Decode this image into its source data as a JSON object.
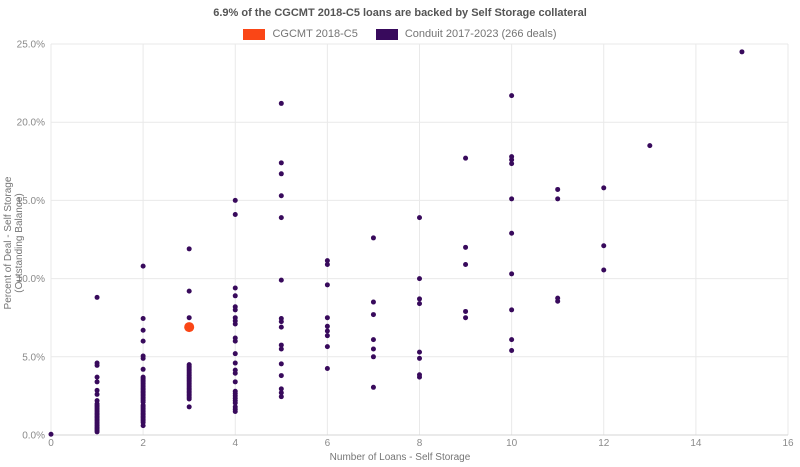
{
  "title": "6.9% of the CGCMT 2018-C5 loans are backed by Self Storage collateral",
  "legend": {
    "items": [
      {
        "label": "CGCMT 2018-C5",
        "color": "#fa4616"
      },
      {
        "label": "Conduit 2017-2023 (266 deals)",
        "color": "#380a5c"
      }
    ]
  },
  "chart_data": {
    "type": "scatter",
    "title": "6.9% of the CGCMT 2018-C5 loans are backed by Self Storage collateral",
    "xlabel": "Number of Loans - Self Storage",
    "ylabel": "Percent of Deal - Self Storage (Outstanding Balance)",
    "xlim": [
      0,
      16
    ],
    "ylim": [
      0,
      25
    ],
    "grid": true,
    "legend_position": "top",
    "x_ticks": [
      {
        "value": 0,
        "label": "0"
      },
      {
        "value": 2,
        "label": "2"
      },
      {
        "value": 4,
        "label": "4"
      },
      {
        "value": 6,
        "label": "6"
      },
      {
        "value": 8,
        "label": "8"
      },
      {
        "value": 10,
        "label": "10"
      },
      {
        "value": 12,
        "label": "12"
      },
      {
        "value": 14,
        "label": "14"
      },
      {
        "value": 16,
        "label": "16"
      }
    ],
    "y_ticks": [
      {
        "value": 0,
        "label": "0.0%"
      },
      {
        "value": 5,
        "label": "5.0%"
      },
      {
        "value": 10,
        "label": "10.0%"
      },
      {
        "value": 15,
        "label": "15.0%"
      },
      {
        "value": 20,
        "label": "20.0%"
      },
      {
        "value": 25,
        "label": "25.0%"
      }
    ],
    "series": [
      {
        "name": "CGCMT 2018-C5",
        "color": "#fa4616",
        "marker_radius": 5,
        "points": [
          [
            3,
            6.9
          ]
        ]
      },
      {
        "name": "Conduit 2017-2023 (266 deals)",
        "color": "#380a5c",
        "marker_radius": 2.5,
        "points": [
          [
            0,
            0.05
          ],
          [
            1,
            8.8
          ],
          [
            1,
            4.6
          ],
          [
            1,
            4.45
          ],
          [
            1,
            3.7
          ],
          [
            1,
            3.4
          ],
          [
            1,
            2.85
          ],
          [
            1,
            2.6
          ],
          [
            1,
            2.2
          ],
          [
            1,
            2.0
          ],
          [
            1,
            1.9
          ],
          [
            1,
            1.8
          ],
          [
            1,
            1.7
          ],
          [
            1,
            1.6
          ],
          [
            1,
            1.5
          ],
          [
            1,
            1.4
          ],
          [
            1,
            1.3
          ],
          [
            1,
            1.2
          ],
          [
            1,
            1.1
          ],
          [
            1,
            1.0
          ],
          [
            1,
            0.9
          ],
          [
            1,
            0.8
          ],
          [
            1,
            0.7
          ],
          [
            1,
            0.6
          ],
          [
            1,
            0.5
          ],
          [
            1,
            0.4
          ],
          [
            1,
            0.3
          ],
          [
            1,
            0.2
          ],
          [
            2,
            10.8
          ],
          [
            2,
            7.45
          ],
          [
            2,
            6.7
          ],
          [
            2,
            6.0
          ],
          [
            2,
            5.05
          ],
          [
            2,
            4.9
          ],
          [
            2,
            4.2
          ],
          [
            2,
            3.7
          ],
          [
            2,
            3.6
          ],
          [
            2,
            3.5
          ],
          [
            2,
            3.4
          ],
          [
            2,
            3.3
          ],
          [
            2,
            3.2
          ],
          [
            2,
            3.1
          ],
          [
            2,
            3.0
          ],
          [
            2,
            2.9
          ],
          [
            2,
            2.8
          ],
          [
            2,
            2.7
          ],
          [
            2,
            2.6
          ],
          [
            2,
            2.5
          ],
          [
            2,
            2.4
          ],
          [
            2,
            2.3
          ],
          [
            2,
            2.2
          ],
          [
            2,
            2.1
          ],
          [
            2,
            1.9
          ],
          [
            2,
            1.8
          ],
          [
            2,
            1.7
          ],
          [
            2,
            1.6
          ],
          [
            2,
            1.5
          ],
          [
            2,
            1.4
          ],
          [
            2,
            1.3
          ],
          [
            2,
            1.2
          ],
          [
            2,
            1.1
          ],
          [
            2,
            1.0
          ],
          [
            2,
            0.9
          ],
          [
            2,
            0.8
          ],
          [
            2,
            0.6
          ],
          [
            3,
            11.9
          ],
          [
            3,
            9.2
          ],
          [
            3,
            7.5
          ],
          [
            3,
            4.5
          ],
          [
            3,
            4.4
          ],
          [
            3,
            4.3
          ],
          [
            3,
            4.2
          ],
          [
            3,
            4.1
          ],
          [
            3,
            4.0
          ],
          [
            3,
            3.9
          ],
          [
            3,
            3.8
          ],
          [
            3,
            3.7
          ],
          [
            3,
            3.6
          ],
          [
            3,
            3.5
          ],
          [
            3,
            3.4
          ],
          [
            3,
            3.3
          ],
          [
            3,
            3.2
          ],
          [
            3,
            3.1
          ],
          [
            3,
            3.0
          ],
          [
            3,
            2.9
          ],
          [
            3,
            2.8
          ],
          [
            3,
            2.7
          ],
          [
            3,
            2.6
          ],
          [
            3,
            2.5
          ],
          [
            3,
            2.4
          ],
          [
            3,
            2.3
          ],
          [
            3,
            1.8
          ],
          [
            4,
            15.0
          ],
          [
            4,
            14.1
          ],
          [
            4,
            9.4
          ],
          [
            4,
            8.9
          ],
          [
            4,
            8.2
          ],
          [
            4,
            8.0
          ],
          [
            4,
            7.5
          ],
          [
            4,
            7.3
          ],
          [
            4,
            7.1
          ],
          [
            4,
            6.2
          ],
          [
            4,
            6.0
          ],
          [
            4,
            5.2
          ],
          [
            4,
            4.6
          ],
          [
            4,
            4.15
          ],
          [
            4,
            3.95
          ],
          [
            4,
            3.4
          ],
          [
            4,
            2.8
          ],
          [
            4,
            2.65
          ],
          [
            4,
            2.5
          ],
          [
            4,
            2.35
          ],
          [
            4,
            2.2
          ],
          [
            4,
            2.05
          ],
          [
            4,
            1.8
          ],
          [
            4,
            1.65
          ],
          [
            4,
            1.5
          ],
          [
            5,
            21.2
          ],
          [
            5,
            17.4
          ],
          [
            5,
            16.7
          ],
          [
            5,
            15.3
          ],
          [
            5,
            13.9
          ],
          [
            5,
            9.9
          ],
          [
            5,
            7.45
          ],
          [
            5,
            7.25
          ],
          [
            5,
            6.9
          ],
          [
            5,
            5.75
          ],
          [
            5,
            5.5
          ],
          [
            5,
            4.55
          ],
          [
            5,
            3.8
          ],
          [
            5,
            2.95
          ],
          [
            5,
            2.7
          ],
          [
            5,
            2.45
          ],
          [
            6,
            11.15
          ],
          [
            6,
            10.9
          ],
          [
            6,
            9.6
          ],
          [
            6,
            7.5
          ],
          [
            6,
            6.95
          ],
          [
            6,
            6.65
          ],
          [
            6,
            6.35
          ],
          [
            6,
            5.65
          ],
          [
            6,
            4.25
          ],
          [
            7,
            12.6
          ],
          [
            7,
            8.5
          ],
          [
            7,
            7.7
          ],
          [
            7,
            6.1
          ],
          [
            7,
            5.5
          ],
          [
            7,
            5.0
          ],
          [
            7,
            3.05
          ],
          [
            8,
            13.9
          ],
          [
            8,
            10.0
          ],
          [
            8,
            8.7
          ],
          [
            8,
            8.4
          ],
          [
            8,
            5.3
          ],
          [
            8,
            4.9
          ],
          [
            8,
            3.85
          ],
          [
            8,
            3.7
          ],
          [
            9,
            17.7
          ],
          [
            9,
            12.0
          ],
          [
            9,
            10.9
          ],
          [
            9,
            7.9
          ],
          [
            9,
            7.5
          ],
          [
            10,
            21.7
          ],
          [
            10,
            17.8
          ],
          [
            10,
            17.6
          ],
          [
            10,
            17.35
          ],
          [
            10,
            15.1
          ],
          [
            10,
            12.9
          ],
          [
            10,
            10.3
          ],
          [
            10,
            8.0
          ],
          [
            10,
            6.1
          ],
          [
            10,
            5.4
          ],
          [
            11,
            15.7
          ],
          [
            11,
            15.1
          ],
          [
            11,
            8.75
          ],
          [
            11,
            8.55
          ],
          [
            12,
            15.8
          ],
          [
            12,
            12.1
          ],
          [
            12,
            10.55
          ],
          [
            13,
            18.5
          ],
          [
            15,
            24.5
          ]
        ]
      }
    ]
  }
}
